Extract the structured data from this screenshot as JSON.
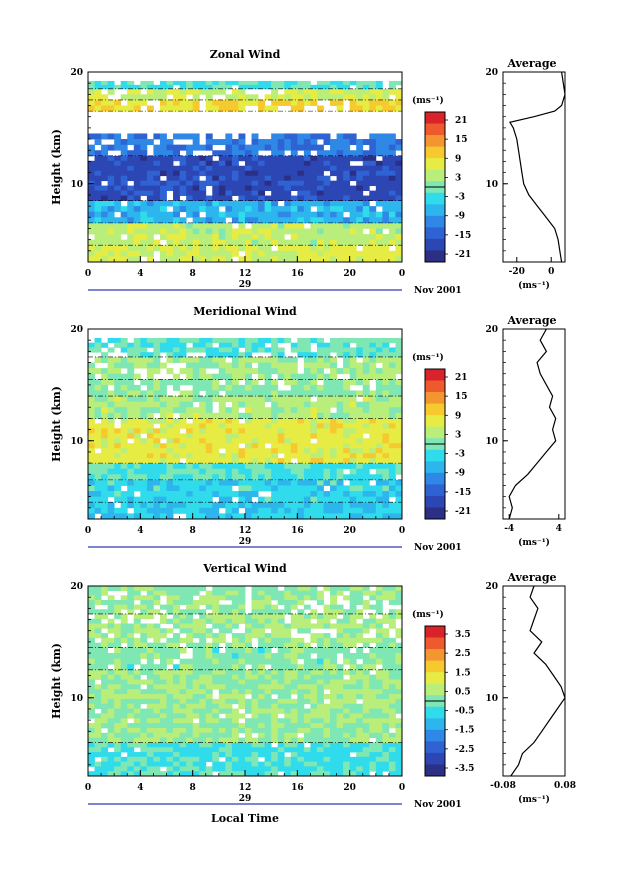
{
  "figure": {
    "xlabel": "Local Time",
    "ylabel": "Height (km)"
  },
  "colormap": [
    "#2b2f86",
    "#2c46b3",
    "#2f62d3",
    "#2f88e6",
    "#2db6ee",
    "#30dcec",
    "#7ee7b4",
    "#b9ee7a",
    "#e6ec44",
    "#f6c92f",
    "#f3962f",
    "#ee5a2e",
    "#d9232a"
  ],
  "chart_data": [
    {
      "type": "heatmap",
      "title": "Zonal Wind",
      "ylabel": "Height (km)",
      "ylim": [
        3,
        20
      ],
      "x_ticks": [
        "0",
        "4",
        "8",
        "12",
        "16",
        "20",
        "0"
      ],
      "date_label": "29",
      "month_label": "Nov 2001",
      "colorbar": {
        "unit": "(ms⁻¹)",
        "ticks": [
          "21",
          "15",
          "9",
          "3",
          "-3",
          "-9",
          "-15",
          "-21"
        ],
        "range": [
          -21,
          21
        ]
      },
      "bands": [
        {
          "hmin": 3.0,
          "hmax": 4.5,
          "value": 6
        },
        {
          "hmin": 4.5,
          "hmax": 6.5,
          "value": 4
        },
        {
          "hmin": 6.5,
          "hmax": 8.5,
          "value": -7
        },
        {
          "hmin": 8.5,
          "hmax": 12.5,
          "value": -17
        },
        {
          "hmin": 12.5,
          "hmax": 14.5,
          "value": -12
        },
        {
          "hmin": 16.5,
          "hmax": 17.5,
          "value": 9
        },
        {
          "hmin": 17.5,
          "hmax": 18.5,
          "value": 5
        },
        {
          "hmin": 18.5,
          "hmax": 19.2,
          "value": -2
        }
      ],
      "profile": {
        "title": "Average",
        "xlim": [
          -28,
          8
        ],
        "x_ticks": [
          -20,
          0
        ],
        "unit": "(ms⁻¹)",
        "points": [
          [
            6,
            3
          ],
          [
            5,
            4
          ],
          [
            4,
            5
          ],
          [
            2,
            6
          ],
          [
            -3,
            7
          ],
          [
            -8,
            8
          ],
          [
            -13,
            9
          ],
          [
            -16,
            10
          ],
          [
            -17,
            11
          ],
          [
            -18,
            12
          ],
          [
            -19,
            13
          ],
          [
            -20,
            14
          ],
          [
            -22,
            15
          ],
          [
            -24,
            15.5
          ],
          [
            -10,
            16
          ],
          [
            2,
            16.5
          ],
          [
            6,
            17
          ],
          [
            7,
            17.5
          ],
          [
            8,
            18
          ],
          [
            7,
            19
          ],
          [
            6,
            20
          ]
        ]
      }
    },
    {
      "type": "heatmap",
      "title": "Meridional Wind",
      "ylabel": "Height (km)",
      "ylim": [
        3,
        20
      ],
      "x_ticks": [
        "0",
        "4",
        "8",
        "12",
        "16",
        "20",
        "0"
      ],
      "date_label": "29",
      "month_label": "Nov 2001",
      "colorbar": {
        "unit": "(ms⁻¹)",
        "ticks": [
          "21",
          "15",
          "9",
          "3",
          "-3",
          "-9",
          "-15",
          "-21"
        ],
        "range": [
          -21,
          21
        ]
      },
      "bands": [
        {
          "hmin": 3.0,
          "hmax": 4.5,
          "value": -5
        },
        {
          "hmin": 4.5,
          "hmax": 6.5,
          "value": -4
        },
        {
          "hmin": 6.5,
          "hmax": 8.0,
          "value": -2
        },
        {
          "hmin": 8.0,
          "hmax": 12.0,
          "value": 7
        },
        {
          "hmin": 12.0,
          "hmax": 14.0,
          "value": 3
        },
        {
          "hmin": 14.0,
          "hmax": 15.5,
          "value": 1
        },
        {
          "hmin": 15.5,
          "hmax": 17.5,
          "value": 2
        },
        {
          "hmin": 17.5,
          "hmax": 19.2,
          "value": -1
        }
      ],
      "profile": {
        "title": "Average",
        "xlim": [
          -5,
          5
        ],
        "x_ticks": [
          -4,
          4
        ],
        "unit": "(ms⁻¹)",
        "points": [
          [
            -4,
            3
          ],
          [
            -3.5,
            4
          ],
          [
            -4,
            5
          ],
          [
            -3,
            6
          ],
          [
            -1,
            7
          ],
          [
            0.5,
            8
          ],
          [
            2,
            9
          ],
          [
            3.5,
            10
          ],
          [
            3,
            11
          ],
          [
            3.5,
            12
          ],
          [
            2.5,
            13
          ],
          [
            3,
            14
          ],
          [
            2,
            15
          ],
          [
            1,
            16
          ],
          [
            0.5,
            17
          ],
          [
            2,
            18
          ],
          [
            1,
            19
          ],
          [
            2,
            20
          ]
        ]
      }
    },
    {
      "type": "heatmap",
      "title": "Vertical Wind",
      "ylabel": "Height (km)",
      "xlabel": "Local Time",
      "ylim": [
        3,
        20
      ],
      "x_ticks": [
        "0",
        "4",
        "8",
        "12",
        "16",
        "20",
        "0"
      ],
      "date_label": "29",
      "month_label": "Nov 2001",
      "colorbar": {
        "unit": "(ms⁻¹)",
        "ticks": [
          "3.5",
          "2.5",
          "1.5",
          "0.5",
          "-0.5",
          "-1.5",
          "-2.5",
          "-3.5"
        ],
        "range": [
          -3.5,
          3.5
        ]
      },
      "bands": [
        {
          "hmin": 3.0,
          "hmax": 6.0,
          "value": -0.4
        },
        {
          "hmin": 6.0,
          "hmax": 12.5,
          "value": 0.3
        },
        {
          "hmin": 12.5,
          "hmax": 14.5,
          "value": 0.1
        },
        {
          "hmin": 14.5,
          "hmax": 17.5,
          "value": 0.4
        },
        {
          "hmin": 17.5,
          "hmax": 20.0,
          "value": 0.2
        }
      ],
      "profile": {
        "title": "Average",
        "xlim": [
          -0.08,
          0.08
        ],
        "x_ticks": [
          -0.08,
          0.08
        ],
        "unit": "(ms⁻¹)",
        "points": [
          [
            -0.06,
            3
          ],
          [
            -0.04,
            4
          ],
          [
            -0.03,
            5
          ],
          [
            0.0,
            6
          ],
          [
            0.02,
            7
          ],
          [
            0.04,
            8
          ],
          [
            0.06,
            9
          ],
          [
            0.08,
            10
          ],
          [
            0.07,
            11
          ],
          [
            0.05,
            12
          ],
          [
            0.03,
            13
          ],
          [
            0.0,
            14
          ],
          [
            0.02,
            15
          ],
          [
            -0.01,
            16
          ],
          [
            0.0,
            17
          ],
          [
            0.01,
            18
          ],
          [
            -0.01,
            19
          ],
          [
            0.0,
            20
          ]
        ]
      }
    }
  ]
}
